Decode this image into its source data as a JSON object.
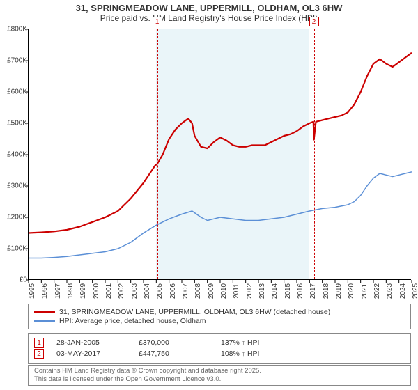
{
  "title": {
    "line1": "31, SPRINGMEADOW LANE, UPPERMILL, OLDHAM, OL3 6HW",
    "line2": "Price paid vs. HM Land Registry's House Price Index (HPI)"
  },
  "chart": {
    "x_start_year": 1995,
    "x_end_year": 2025,
    "y_min": 0,
    "y_max": 800000,
    "y_tick_step": 100000,
    "y_tick_prefix": "£",
    "y_tick_suffix": "K",
    "background_color": "#ffffff",
    "axis_color": "#000000",
    "tick_fontsize": 10,
    "highlight_band": {
      "from_year": 2005,
      "to_year": 2017,
      "color": "rgba(173,216,230,0.25)"
    },
    "markers": [
      {
        "n": "1",
        "year": 2005.07,
        "box_color": "#cc0000"
      },
      {
        "n": "2",
        "year": 2017.34,
        "box_color": "#cc0000"
      }
    ],
    "series": [
      {
        "name": "price_paid",
        "color": "#cc0000",
        "width": 2.2,
        "legend": "31, SPRINGMEADOW LANE, UPPERMILL, OLDHAM, OL3 6HW (detached house)",
        "points": [
          [
            1995.0,
            150000
          ],
          [
            1996.0,
            152000
          ],
          [
            1997.0,
            155000
          ],
          [
            1998.0,
            160000
          ],
          [
            1999.0,
            170000
          ],
          [
            2000.0,
            185000
          ],
          [
            2001.0,
            200000
          ],
          [
            2002.0,
            220000
          ],
          [
            2003.0,
            260000
          ],
          [
            2004.0,
            310000
          ],
          [
            2004.9,
            365000
          ],
          [
            2005.07,
            370000
          ],
          [
            2005.5,
            400000
          ],
          [
            2006.0,
            450000
          ],
          [
            2006.5,
            480000
          ],
          [
            2007.0,
            500000
          ],
          [
            2007.5,
            515000
          ],
          [
            2007.8,
            500000
          ],
          [
            2008.0,
            460000
          ],
          [
            2008.5,
            425000
          ],
          [
            2009.0,
            420000
          ],
          [
            2009.5,
            440000
          ],
          [
            2010.0,
            455000
          ],
          [
            2010.5,
            445000
          ],
          [
            2011.0,
            430000
          ],
          [
            2011.5,
            425000
          ],
          [
            2012.0,
            425000
          ],
          [
            2012.5,
            430000
          ],
          [
            2013.0,
            430000
          ],
          [
            2013.5,
            430000
          ],
          [
            2014.0,
            440000
          ],
          [
            2014.5,
            450000
          ],
          [
            2015.0,
            460000
          ],
          [
            2015.5,
            465000
          ],
          [
            2016.0,
            475000
          ],
          [
            2016.5,
            490000
          ],
          [
            2017.0,
            500000
          ],
          [
            2017.3,
            505000
          ],
          [
            2017.34,
            447750
          ],
          [
            2017.5,
            505000
          ],
          [
            2018.0,
            510000
          ],
          [
            2018.5,
            515000
          ],
          [
            2019.0,
            520000
          ],
          [
            2019.5,
            525000
          ],
          [
            2020.0,
            535000
          ],
          [
            2020.5,
            560000
          ],
          [
            2021.0,
            600000
          ],
          [
            2021.5,
            650000
          ],
          [
            2022.0,
            690000
          ],
          [
            2022.5,
            705000
          ],
          [
            2023.0,
            690000
          ],
          [
            2023.5,
            680000
          ],
          [
            2024.0,
            695000
          ],
          [
            2024.5,
            710000
          ],
          [
            2025.0,
            725000
          ]
        ]
      },
      {
        "name": "hpi",
        "color": "#5b8fd6",
        "width": 1.5,
        "legend": "HPI: Average price, detached house, Oldham",
        "points": [
          [
            1995.0,
            70000
          ],
          [
            1996.0,
            70000
          ],
          [
            1997.0,
            72000
          ],
          [
            1998.0,
            75000
          ],
          [
            1999.0,
            80000
          ],
          [
            2000.0,
            85000
          ],
          [
            2001.0,
            90000
          ],
          [
            2002.0,
            100000
          ],
          [
            2003.0,
            120000
          ],
          [
            2004.0,
            150000
          ],
          [
            2005.0,
            175000
          ],
          [
            2006.0,
            195000
          ],
          [
            2007.0,
            210000
          ],
          [
            2007.8,
            220000
          ],
          [
            2008.5,
            200000
          ],
          [
            2009.0,
            190000
          ],
          [
            2009.5,
            195000
          ],
          [
            2010.0,
            200000
          ],
          [
            2011.0,
            195000
          ],
          [
            2012.0,
            190000
          ],
          [
            2013.0,
            190000
          ],
          [
            2014.0,
            195000
          ],
          [
            2015.0,
            200000
          ],
          [
            2016.0,
            210000
          ],
          [
            2017.0,
            220000
          ],
          [
            2018.0,
            228000
          ],
          [
            2019.0,
            232000
          ],
          [
            2020.0,
            240000
          ],
          [
            2020.5,
            250000
          ],
          [
            2021.0,
            270000
          ],
          [
            2021.5,
            300000
          ],
          [
            2022.0,
            325000
          ],
          [
            2022.5,
            340000
          ],
          [
            2023.0,
            335000
          ],
          [
            2023.5,
            330000
          ],
          [
            2024.0,
            335000
          ],
          [
            2024.5,
            340000
          ],
          [
            2025.0,
            345000
          ]
        ]
      }
    ]
  },
  "sales": [
    {
      "n": "1",
      "date": "28-JAN-2005",
      "price": "£370,000",
      "hpi": "137% ↑ HPI"
    },
    {
      "n": "2",
      "date": "03-MAY-2017",
      "price": "£447,750",
      "hpi": "108% ↑ HPI"
    }
  ],
  "attribution": {
    "line1": "Contains HM Land Registry data © Crown copyright and database right 2025.",
    "line2": "This data is licensed under the Open Government Licence v3.0."
  }
}
